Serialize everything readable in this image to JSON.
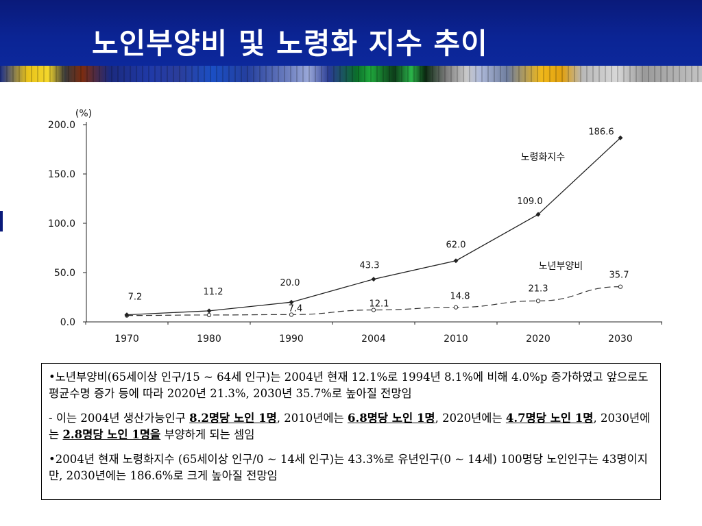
{
  "slide": {
    "title": "노인부양비 및 노령화 지수 추이"
  },
  "chart_data": {
    "type": "line",
    "unit_label": "(%)",
    "categories": [
      "1970",
      "1980",
      "1990",
      "2004",
      "2010",
      "2020",
      "2030"
    ],
    "ylim": [
      0,
      200
    ],
    "yticks": [
      "0.0",
      "50.0",
      "100.0",
      "150.0",
      "200.0"
    ],
    "legend_placement": "inline labels near series",
    "series": [
      {
        "name": "노령화지수",
        "style": "solid",
        "marker": "filled-diamond",
        "color": "#222222",
        "values": [
          7.2,
          11.2,
          20.0,
          43.3,
          62.0,
          109.0,
          186.6
        ],
        "value_labels": [
          "7.2",
          "11.2",
          "20.0",
          "43.3",
          "62.0",
          "109.0",
          "186.6"
        ]
      },
      {
        "name": "노년부양비",
        "style": "dashed",
        "marker": "open-circle",
        "color": "#222222",
        "values": [
          6.5,
          7.0,
          7.4,
          12.1,
          14.8,
          21.3,
          35.7
        ],
        "value_labels": [
          "",
          "",
          "7.4",
          "12.1",
          "14.8",
          "21.3",
          "35.7"
        ]
      }
    ]
  },
  "notes": {
    "p1": "•노년부양비(65세이상 인구/15 ~ 64세 인구)는 2004년 현재 12.1%로 1994년 8.1%에 비해 4.0%p 증가하였고 앞으로도 평균수명 증가 등에 따라 2020년 21.3%, 2030년 35.7%로 높아질 전망임",
    "p2_a": "  - 이는 2004년 생산가능인구 ",
    "p2_b": "8.2명당 노인 1명",
    "p2_c": ", 2010년에는 ",
    "p2_d": "6.8명당 노인 1명",
    "p2_e": ", 2020년에는 ",
    "p2_f": "4.7명당 노인 1명",
    "p2_g": ", 2030년에는 ",
    "p2_h": "2.8명당 노인 1명을",
    "p2_i": " 부양하게 되는 셈임",
    "p3": "•2004년 현재 노령화지수 (65세이상 인구/0 ~ 14세 인구)는 43.3%로 유년인구(0 ~ 14세) 100명당 노인인구는 43명이지만, 2030년에는 186.6%로 크게 높아질 전망임"
  }
}
